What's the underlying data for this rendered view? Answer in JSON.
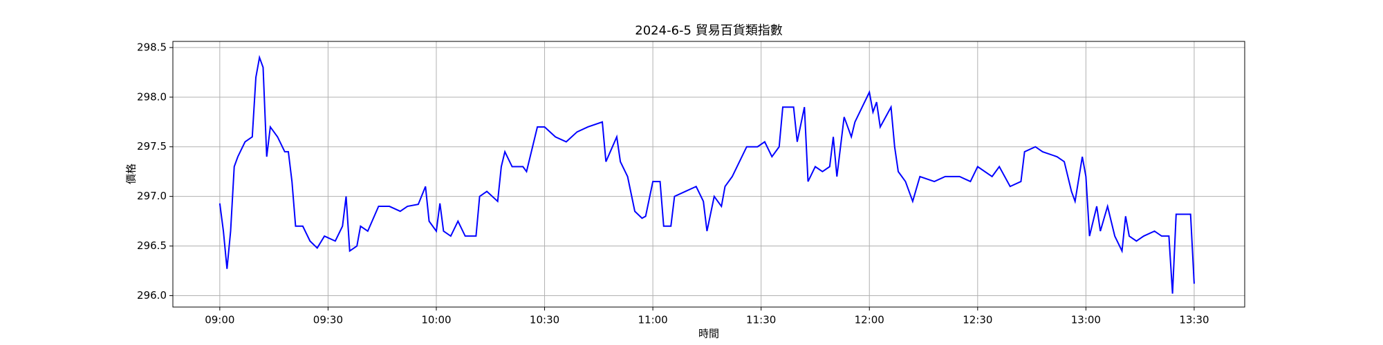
{
  "chart_data": {
    "type": "line",
    "title": "2024-6-5 貿易百貨類指數",
    "xlabel": "時間",
    "ylabel": "價格",
    "x": [
      "09:00",
      "09:01",
      "09:02",
      "09:03",
      "09:04",
      "09:05",
      "09:07",
      "09:09",
      "09:10",
      "09:11",
      "09:12",
      "09:13",
      "09:14",
      "09:16",
      "09:18",
      "09:19",
      "09:20",
      "09:21",
      "09:23",
      "09:25",
      "09:27",
      "09:29",
      "09:32",
      "09:34",
      "09:35",
      "09:36",
      "09:38",
      "09:39",
      "09:41",
      "09:44",
      "09:47",
      "09:50",
      "09:52",
      "09:55",
      "09:57",
      "09:58",
      "10:00",
      "10:01",
      "10:02",
      "10:04",
      "10:06",
      "10:08",
      "10:11",
      "10:12",
      "10:14",
      "10:17",
      "10:18",
      "10:19",
      "10:21",
      "10:24",
      "10:25",
      "10:28",
      "10:30",
      "10:33",
      "10:36",
      "10:39",
      "10:42",
      "10:46",
      "10:47",
      "10:50",
      "10:51",
      "10:53",
      "10:55",
      "10:57",
      "10:58",
      "11:00",
      "11:02",
      "11:03",
      "11:05",
      "11:06",
      "11:09",
      "11:12",
      "11:14",
      "11:15",
      "11:17",
      "11:19",
      "11:20",
      "11:22",
      "11:24",
      "11:26",
      "11:29",
      "11:31",
      "11:33",
      "11:35",
      "11:36",
      "11:39",
      "11:40",
      "11:42",
      "11:43",
      "11:45",
      "11:47",
      "11:49",
      "11:50",
      "11:51",
      "11:53",
      "11:55",
      "11:56",
      "11:58",
      "12:00",
      "12:01",
      "12:02",
      "12:03",
      "12:06",
      "12:07",
      "12:08",
      "12:10",
      "12:12",
      "12:14",
      "12:18",
      "12:21",
      "12:25",
      "12:28",
      "12:30",
      "12:34",
      "12:36",
      "12:39",
      "12:42",
      "12:43",
      "12:46",
      "12:48",
      "12:52",
      "12:54",
      "12:56",
      "12:57",
      "12:59",
      "13:00",
      "13:01",
      "13:03",
      "13:04",
      "13:06",
      "13:08",
      "13:10",
      "13:11",
      "13:12",
      "13:14",
      "13:16",
      "13:19",
      "13:21",
      "13:23",
      "13:24",
      "13:25",
      "13:29",
      "13:30"
    ],
    "series": [
      {
        "name": "價格",
        "color": "#0000ff",
        "values": [
          296.93,
          296.65,
          296.27,
          296.65,
          297.3,
          297.4,
          297.55,
          297.6,
          298.2,
          298.4,
          298.3,
          297.4,
          297.7,
          297.6,
          297.45,
          297.45,
          297.15,
          296.7,
          296.7,
          296.55,
          296.48,
          296.6,
          296.55,
          296.7,
          297.0,
          296.45,
          296.5,
          296.7,
          296.65,
          296.9,
          296.9,
          296.85,
          296.9,
          296.92,
          297.1,
          296.75,
          296.65,
          296.93,
          296.65,
          296.6,
          296.75,
          296.6,
          296.6,
          297.0,
          297.05,
          296.95,
          297.3,
          297.45,
          297.3,
          297.3,
          297.25,
          297.7,
          297.7,
          297.6,
          297.55,
          297.65,
          297.7,
          297.75,
          297.35,
          297.6,
          297.35,
          297.2,
          296.85,
          296.78,
          296.8,
          297.15,
          297.15,
          296.7,
          296.7,
          297.0,
          297.05,
          297.1,
          296.95,
          296.65,
          297.0,
          296.9,
          297.1,
          297.2,
          297.35,
          297.5,
          297.5,
          297.55,
          297.4,
          297.5,
          297.9,
          297.9,
          297.55,
          297.9,
          297.15,
          297.3,
          297.25,
          297.3,
          297.6,
          297.2,
          297.8,
          297.6,
          297.75,
          297.9,
          298.05,
          297.85,
          297.95,
          297.7,
          297.9,
          297.5,
          297.25,
          297.15,
          296.95,
          297.2,
          297.15,
          297.2,
          297.2,
          297.15,
          297.3,
          297.2,
          297.3,
          297.1,
          297.15,
          297.45,
          297.5,
          297.45,
          297.4,
          297.35,
          297.05,
          296.95,
          297.4,
          297.2,
          296.6,
          296.9,
          296.65,
          296.9,
          296.6,
          296.45,
          296.8,
          296.6,
          296.55,
          296.6,
          296.65,
          296.6,
          296.6,
          296.02,
          296.82,
          296.82,
          296.12
        ]
      }
    ],
    "xlim": [
      "08:47",
      "13:44"
    ],
    "xticks": [
      "09:00",
      "09:30",
      "10:00",
      "10:30",
      "11:00",
      "11:30",
      "12:00",
      "12:30",
      "13:00",
      "13:30"
    ],
    "ylim": [
      295.885,
      298.562
    ],
    "yticks": [
      {
        "value": 296,
        "label": "296.0"
      },
      {
        "value": 296.5,
        "label": "296.5"
      },
      {
        "value": 297,
        "label": "297.0"
      },
      {
        "value": 297.5,
        "label": "297.5"
      },
      {
        "value": 298,
        "label": "298.0"
      },
      {
        "value": 298.5,
        "label": "298.5"
      }
    ],
    "grid": true
  }
}
